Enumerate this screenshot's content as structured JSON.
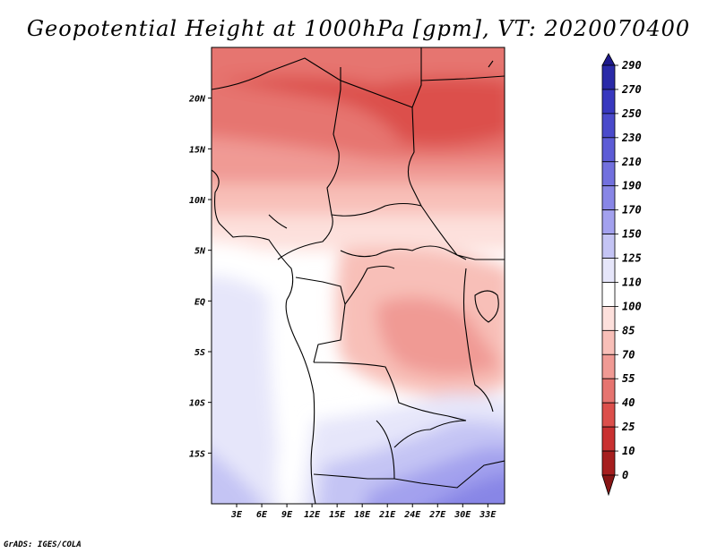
{
  "title": "Geopotential Height at 1000hPa [gpm], VT: 2020070400",
  "credit": "GrADS: IGES/COLA",
  "map": {
    "projection": "lat-lon",
    "lon_range": [
      0,
      35
    ],
    "lat_range": [
      -20,
      25
    ],
    "x_ticks": [
      "3E",
      "6E",
      "9E",
      "12E",
      "15E",
      "18E",
      "21E",
      "24E",
      "27E",
      "30E",
      "33E"
    ],
    "y_ticks": [
      "20N",
      "15N",
      "10N",
      "5N",
      "EQ",
      "5S",
      "10S",
      "15S"
    ]
  },
  "colorbar": {
    "labels": [
      "290",
      "270",
      "250",
      "230",
      "210",
      "190",
      "170",
      "150",
      "125",
      "110",
      "100",
      "85",
      "70",
      "55",
      "40",
      "25",
      "10",
      "0"
    ],
    "colors": [
      "#1e1a8c",
      "#2a2aa8",
      "#3838bf",
      "#4a4acb",
      "#5d5cd6",
      "#7270de",
      "#8886e6",
      "#a3a1ee",
      "#c4c4f4",
      "#e6e6fa",
      "#ffffff",
      "#fde0dc",
      "#f8bfb8",
      "#f09a94",
      "#e67470",
      "#dc4f4b",
      "#c93131",
      "#a61e1e",
      "#871515"
    ]
  }
}
